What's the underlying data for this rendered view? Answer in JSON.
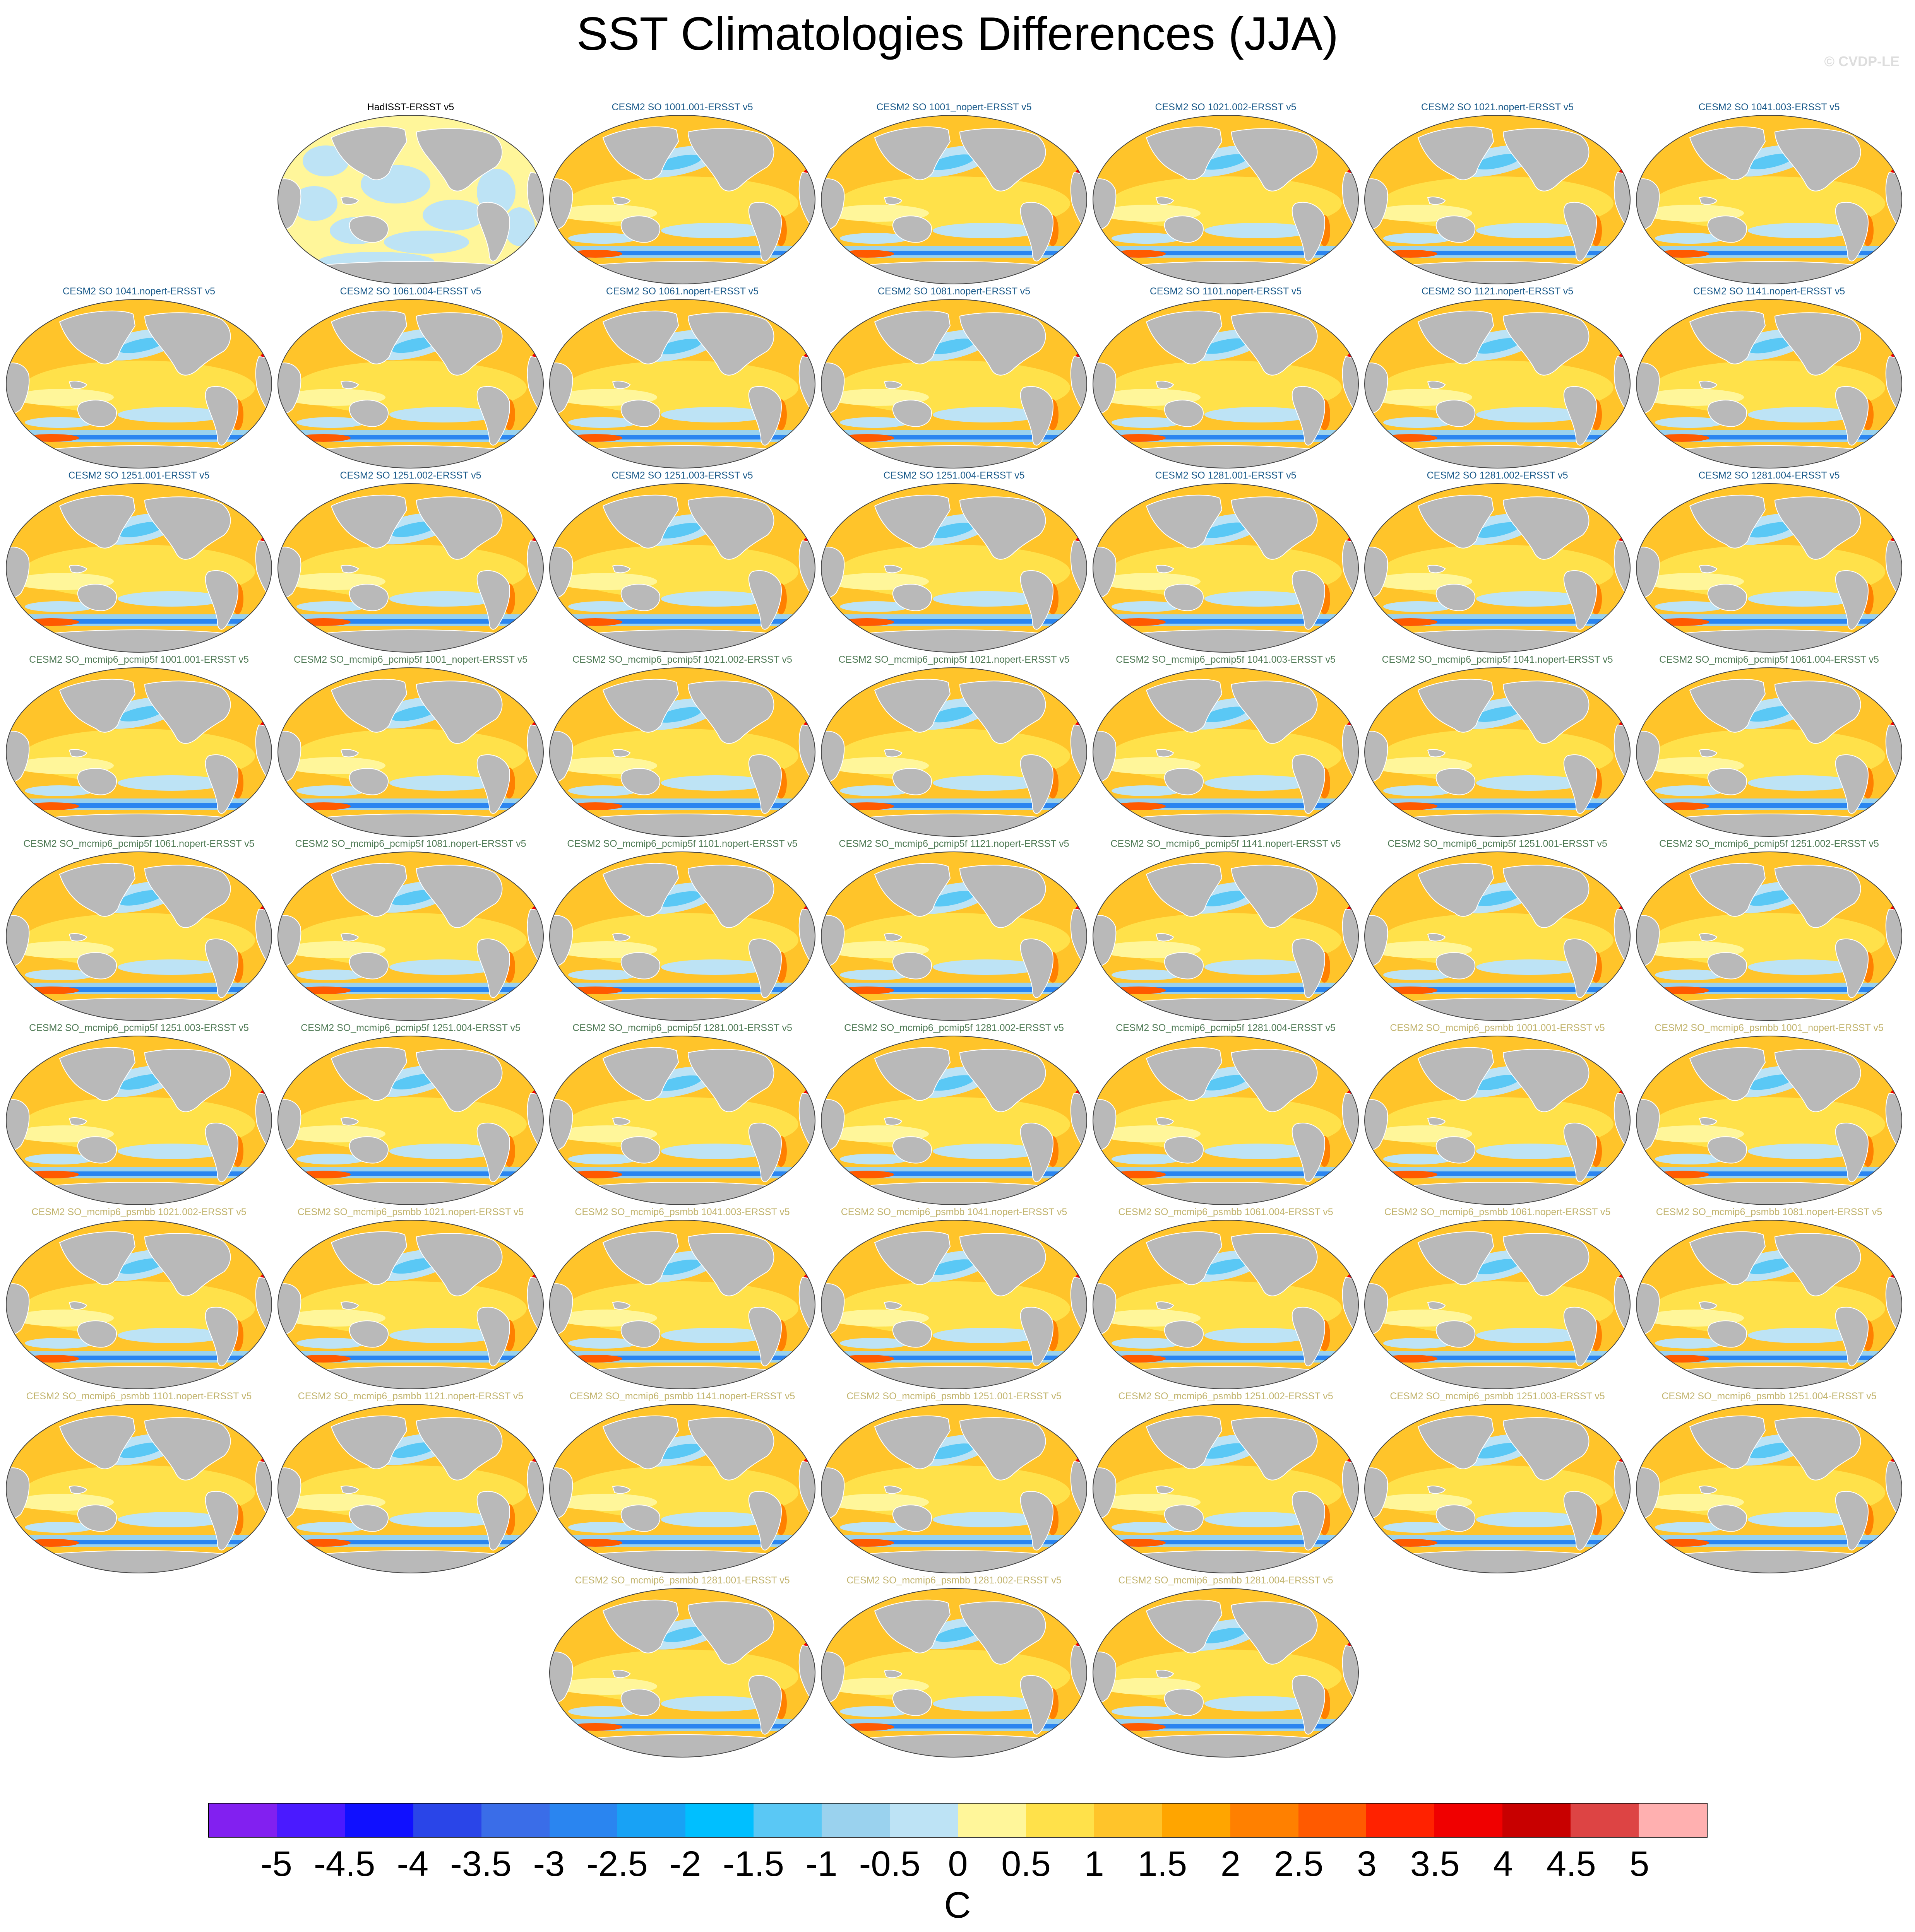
{
  "title": "SST Climatologies Differences (JJA)",
  "credit": "© CVDP-LE",
  "colors": {
    "land": "#b9b9b9",
    "obs_title": "#000000",
    "cesm2_so_title": "#1a5a8a",
    "pcmip5f_title": "#4f7a55",
    "psmbb_title": "#c2b46e"
  },
  "obs_panel": {
    "title": "HadISST-ERSST v5"
  },
  "panel_titles": [
    "CESM2 SO 1001.001-ERSST v5",
    "CESM2 SO 1001_nopert-ERSST v5",
    "CESM2 SO 1021.002-ERSST v5",
    "CESM2 SO 1021.nopert-ERSST v5",
    "CESM2 SO 1041.003-ERSST v5",
    "CESM2 SO 1041.nopert-ERSST v5",
    "CESM2 SO 1061.004-ERSST v5",
    "CESM2 SO 1061.nopert-ERSST v5",
    "CESM2 SO 1081.nopert-ERSST v5",
    "CESM2 SO 1101.nopert-ERSST v5",
    "CESM2 SO 1121.nopert-ERSST v5",
    "CESM2 SO 1141.nopert-ERSST v5",
    "CESM2 SO 1251.001-ERSST v5",
    "CESM2 SO 1251.002-ERSST v5",
    "CESM2 SO 1251.003-ERSST v5",
    "CESM2 SO 1251.004-ERSST v5",
    "CESM2 SO 1281.001-ERSST v5",
    "CESM2 SO 1281.002-ERSST v5",
    "CESM2 SO 1281.004-ERSST v5",
    "CESM2 SO_mcmip6_pcmip5f 1001.001-ERSST v5",
    "CESM2 SO_mcmip6_pcmip5f 1001_nopert-ERSST v5",
    "CESM2 SO_mcmip6_pcmip5f 1021.002-ERSST v5",
    "CESM2 SO_mcmip6_pcmip5f 1021.nopert-ERSST v5",
    "CESM2 SO_mcmip6_pcmip5f 1041.003-ERSST v5",
    "CESM2 SO_mcmip6_pcmip5f 1041.nopert-ERSST v5",
    "CESM2 SO_mcmip6_pcmip5f 1061.004-ERSST v5",
    "CESM2 SO_mcmip6_pcmip5f 1061.nopert-ERSST v5",
    "CESM2 SO_mcmip6_pcmip5f 1081.nopert-ERSST v5",
    "CESM2 SO_mcmip6_pcmip5f 1101.nopert-ERSST v5",
    "CESM2 SO_mcmip6_pcmip5f 1121.nopert-ERSST v5",
    "CESM2 SO_mcmip6_pcmip5f 1141.nopert-ERSST v5",
    "CESM2 SO_mcmip6_pcmip5f 1251.001-ERSST v5",
    "CESM2 SO_mcmip6_pcmip5f 1251.002-ERSST v5",
    "CESM2 SO_mcmip6_pcmip5f 1251.003-ERSST v5",
    "CESM2 SO_mcmip6_pcmip5f 1251.004-ERSST v5",
    "CESM2 SO_mcmip6_pcmip5f 1281.001-ERSST v5",
    "CESM2 SO_mcmip6_pcmip5f 1281.002-ERSST v5",
    "CESM2 SO_mcmip6_pcmip5f 1281.004-ERSST v5",
    "CESM2 SO_mcmip6_psmbb 1001.001-ERSST v5",
    "CESM2 SO_mcmip6_psmbb 1001_nopert-ERSST v5",
    "CESM2 SO_mcmip6_psmbb 1021.002-ERSST v5",
    "CESM2 SO_mcmip6_psmbb 1021.nopert-ERSST v5",
    "CESM2 SO_mcmip6_psmbb 1041.003-ERSST v5",
    "CESM2 SO_mcmip6_psmbb 1041.nopert-ERSST v5",
    "CESM2 SO_mcmip6_psmbb 1061.004-ERSST v5",
    "CESM2 SO_mcmip6_psmbb 1061.nopert-ERSST v5",
    "CESM2 SO_mcmip6_psmbb 1081.nopert-ERSST v5",
    "CESM2 SO_mcmip6_psmbb 1101.nopert-ERSST v5",
    "CESM2 SO_mcmip6_psmbb 1121.nopert-ERSST v5",
    "CESM2 SO_mcmip6_psmbb 1141.nopert-ERSST v5",
    "CESM2 SO_mcmip6_psmbb 1251.001-ERSST v5",
    "CESM2 SO_mcmip6_psmbb 1251.002-ERSST v5",
    "CESM2 SO_mcmip6_psmbb 1251.003-ERSST v5",
    "CESM2 SO_mcmip6_psmbb 1251.004-ERSST v5",
    "CESM2 SO_mcmip6_psmbb 1281.001-ERSST v5",
    "CESM2 SO_mcmip6_psmbb 1281.002-ERSST v5",
    "CESM2 SO_mcmip6_psmbb 1281.004-ERSST v5"
  ],
  "colorbar": {
    "units": "C",
    "labels": [
      "-5",
      "-4.5",
      "-4",
      "-3.5",
      "-3",
      "-2.5",
      "-2",
      "-1.5",
      "-1",
      "-0.5",
      "0",
      "0.5",
      "1",
      "1.5",
      "2",
      "2.5",
      "3",
      "3.5",
      "4",
      "4.5",
      "5"
    ],
    "colors": [
      "#8220f0",
      "#4a1aff",
      "#1010ff",
      "#2a45e8",
      "#3a6de8",
      "#2a85f0",
      "#18a2f5",
      "#00bfff",
      "#5ac8f5",
      "#9ad2ee",
      "#bde3f5",
      "#fff69a",
      "#ffe14a",
      "#ffc42a",
      "#ffa500",
      "#ff8000",
      "#ff5a00",
      "#ff2200",
      "#f00000",
      "#c80000",
      "#dd4444",
      "#ffb0b0"
    ]
  }
}
